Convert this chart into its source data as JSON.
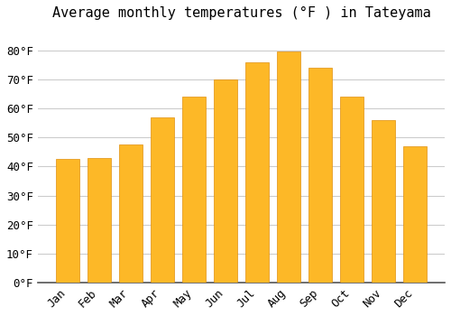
{
  "title": "Average monthly temperatures (°F ) in Tateyama",
  "months": [
    "Jan",
    "Feb",
    "Mar",
    "Apr",
    "May",
    "Jun",
    "Jul",
    "Aug",
    "Sep",
    "Oct",
    "Nov",
    "Dec"
  ],
  "values": [
    42.5,
    43.0,
    47.5,
    57.0,
    64.0,
    70.0,
    76.0,
    79.5,
    74.0,
    64.0,
    56.0,
    47.0
  ],
  "bar_color": "#FDB827",
  "bar_edge_color": "#E09010",
  "background_color": "#ffffff",
  "grid_color": "#cccccc",
  "ylim": [
    0,
    88
  ],
  "yticks": [
    0,
    10,
    20,
    30,
    40,
    50,
    60,
    70,
    80
  ],
  "title_fontsize": 11,
  "tick_fontsize": 9,
  "bar_width": 0.72
}
